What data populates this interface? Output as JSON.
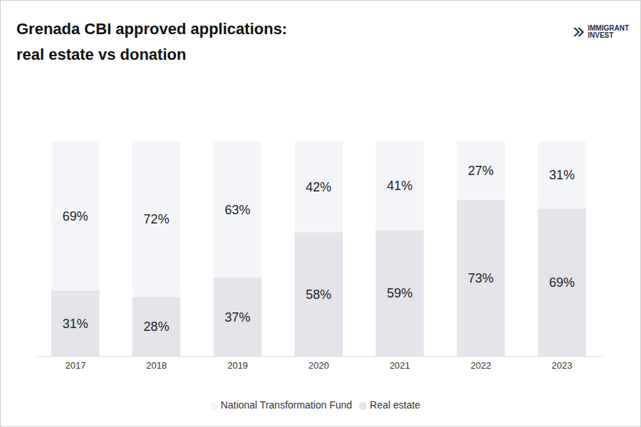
{
  "chart_data": {
    "type": "bar",
    "title": [
      "Grenada CBI approved applications:",
      "real estate vs donation"
    ],
    "logo": [
      "IMMIGRANT",
      "INVEST"
    ],
    "categories": [
      "2017",
      "2018",
      "2019",
      "2020",
      "2021",
      "2022",
      "2023"
    ],
    "series": [
      {
        "name": "Real estate",
        "color": "#e4e4ea",
        "values": [
          31,
          28,
          37,
          58,
          59,
          73,
          69
        ],
        "value_labels": [
          "31%",
          "28%",
          "37%",
          "58%",
          "59%",
          "73%",
          "69%"
        ]
      },
      {
        "name": "National Transformation Fund",
        "color": "#f3f5f9",
        "values": [
          69,
          72,
          63,
          42,
          41,
          27,
          31
        ],
        "value_labels": [
          "69%",
          "72%",
          "63%",
          "42%",
          "41%",
          "27%",
          "31%"
        ]
      }
    ],
    "ylim": [
      0,
      100
    ],
    "stacked": true,
    "data_labels": true,
    "tick_labels": "x",
    "legend": "bottom",
    "grid": false
  }
}
